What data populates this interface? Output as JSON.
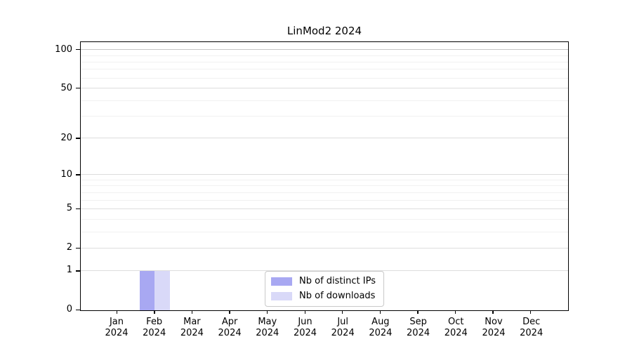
{
  "chart_data": {
    "type": "bar",
    "title": "LinMod2 2024",
    "categories": [
      "Jan 2024",
      "Feb 2024",
      "Mar 2024",
      "Apr 2024",
      "May 2024",
      "Jun 2024",
      "Jul 2024",
      "Aug 2024",
      "Sep 2024",
      "Oct 2024",
      "Nov 2024",
      "Dec 2024"
    ],
    "series": [
      {
        "name": "Nb of distinct IPs",
        "color": "#a8a8f2",
        "values": [
          0,
          1,
          0,
          0,
          0,
          0,
          0,
          0,
          0,
          0,
          0,
          0
        ]
      },
      {
        "name": "Nb of downloads",
        "color": "#d9d9f8",
        "values": [
          0,
          1,
          0,
          0,
          0,
          0,
          0,
          0,
          0,
          0,
          0,
          0
        ]
      }
    ],
    "xlabel": "",
    "ylabel": "",
    "yscale": "log1p",
    "ylim": [
      0,
      115
    ],
    "yticks_major": [
      0,
      1,
      2,
      5,
      10,
      20,
      50,
      100
    ],
    "yticks_minor": [
      3,
      4,
      6,
      7,
      8,
      9,
      30,
      40,
      60,
      70,
      80,
      90
    ],
    "grid": true,
    "legend_position": "lower center"
  },
  "legend": {
    "items": [
      {
        "label": "Nb of distinct IPs",
        "color": "#a8a8f2"
      },
      {
        "label": "Nb of downloads",
        "color": "#d9d9f8"
      }
    ]
  },
  "colors": {
    "bar_distinct_ips": "#a8a8f2",
    "bar_downloads": "#d9d9f8",
    "axis": "#000000",
    "grid_major": "#dddddd",
    "grid_minor": "#f1f1f1",
    "grid_hundred": "#c6c6c6",
    "legend_border": "#c9c9c9"
  }
}
